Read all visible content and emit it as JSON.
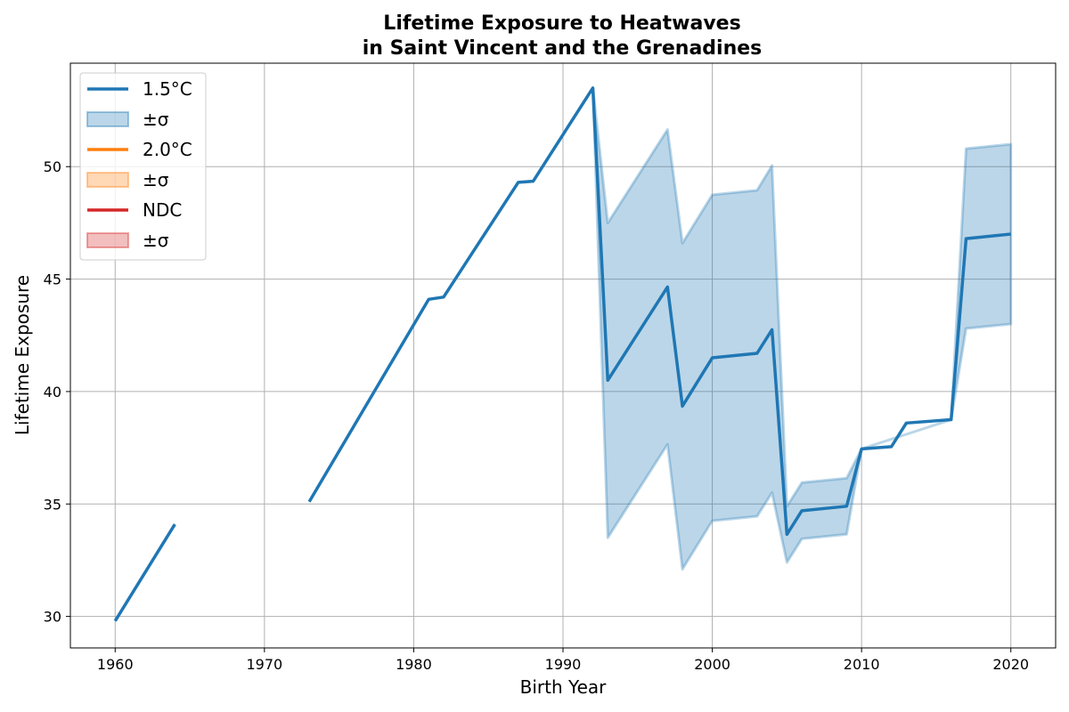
{
  "chart_data": {
    "type": "line",
    "title_lines": [
      "Lifetime Exposure to Heatwaves",
      "in Saint Vincent and the Grenadines"
    ],
    "xlabel": "Birth Year",
    "ylabel": "Lifetime Exposure",
    "xlim": [
      1957,
      2023
    ],
    "ylim": [
      28.6,
      54.6
    ],
    "xticks": [
      1960,
      1970,
      1980,
      1990,
      2000,
      2010,
      2020
    ],
    "yticks": [
      30,
      35,
      40,
      45,
      50
    ],
    "grid": true,
    "legend_position": "top-left",
    "legend": [
      {
        "kind": "line",
        "label": "1.5°C",
        "color": "#1f77b4"
      },
      {
        "kind": "band",
        "label": "±σ",
        "color": "#1f77b4"
      },
      {
        "kind": "line",
        "label": "2.0°C",
        "color": "#ff7f0e"
      },
      {
        "kind": "band",
        "label": "±σ",
        "color": "#ff7f0e"
      },
      {
        "kind": "line",
        "label": "NDC",
        "color": "#d62728"
      },
      {
        "kind": "band",
        "label": "±σ",
        "color": "#d62728"
      }
    ],
    "series": [
      {
        "name": "1.5°C",
        "color": "#1f77b4",
        "segments": [
          [
            [
              1960,
              29.8
            ],
            [
              1964,
              34.1
            ]
          ],
          [
            [
              1973,
              35.1
            ],
            [
              1981,
              44.1
            ],
            [
              1982,
              44.2
            ],
            [
              1987,
              49.3
            ],
            [
              1988,
              49.35
            ],
            [
              1992,
              53.5
            ],
            [
              1993,
              40.5
            ],
            [
              1997,
              44.65
            ],
            [
              1998,
              39.35
            ],
            [
              2000,
              41.5
            ],
            [
              2003,
              41.7
            ],
            [
              2004,
              42.75
            ],
            [
              2005,
              33.65
            ],
            [
              2006,
              34.7
            ],
            [
              2009,
              34.9
            ],
            [
              2010,
              37.45
            ],
            [
              2012,
              37.55
            ],
            [
              2013,
              38.6
            ],
            [
              2016,
              38.75
            ],
            [
              2017,
              46.8
            ],
            [
              2020,
              47.0
            ]
          ]
        ],
        "band": [
          {
            "x": 1992,
            "lower": 53.5,
            "upper": 53.5
          },
          {
            "x": 1993,
            "lower": 33.5,
            "upper": 47.5
          },
          {
            "x": 1997,
            "lower": 37.65,
            "upper": 51.65
          },
          {
            "x": 1998,
            "lower": 32.1,
            "upper": 46.6
          },
          {
            "x": 2000,
            "lower": 34.25,
            "upper": 48.75
          },
          {
            "x": 2003,
            "lower": 34.45,
            "upper": 48.95
          },
          {
            "x": 2004,
            "lower": 35.5,
            "upper": 50.05
          },
          {
            "x": 2005,
            "lower": 32.4,
            "upper": 34.9
          },
          {
            "x": 2006,
            "lower": 33.45,
            "upper": 35.95
          },
          {
            "x": 2009,
            "lower": 33.65,
            "upper": 36.15
          },
          {
            "x": 2010,
            "lower": 37.45,
            "upper": 37.45
          },
          {
            "x": 2016,
            "lower": 38.75,
            "upper": 38.75
          },
          {
            "x": 2017,
            "lower": 42.8,
            "upper": 50.8
          },
          {
            "x": 2020,
            "lower": 43.0,
            "upper": 51.0
          }
        ]
      },
      {
        "name": "2.0°C",
        "color": "#ff7f0e",
        "segments": [],
        "band": []
      },
      {
        "name": "NDC",
        "color": "#d62728",
        "segments": [],
        "band": []
      }
    ]
  }
}
